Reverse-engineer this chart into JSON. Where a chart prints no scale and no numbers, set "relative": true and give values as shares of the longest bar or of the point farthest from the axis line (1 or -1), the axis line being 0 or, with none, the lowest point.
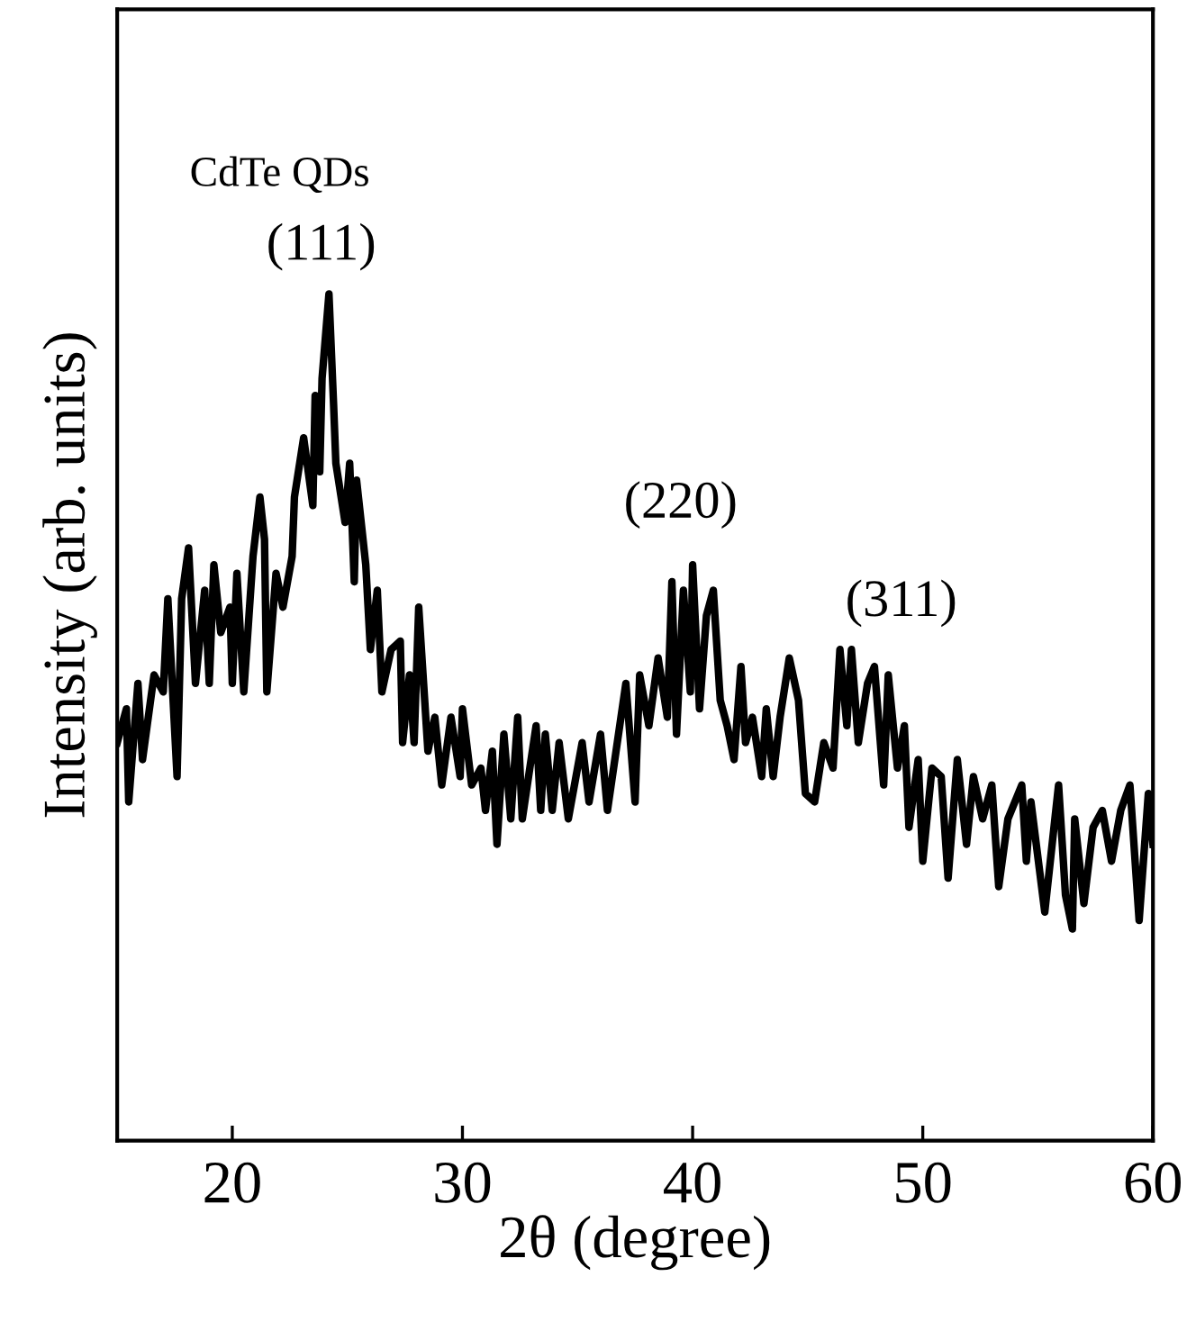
{
  "chart_data": {
    "type": "line",
    "relative": true,
    "xlabel": "2θ (degree)",
    "ylabel": "Intensity (arb. units)",
    "xlim": [
      15,
      60
    ],
    "xticks": [
      20,
      30,
      40,
      50,
      60
    ],
    "annotations": [
      "CdTe QDs",
      "(111)",
      "(220)",
      "(311)"
    ],
    "series": [
      {
        "color": "#000000",
        "x": [
          15.0,
          15.4,
          15.5,
          15.9,
          16.1,
          16.6,
          17.0,
          17.2,
          17.6,
          17.8,
          18.1,
          18.4,
          18.8,
          19.0,
          19.2,
          19.5,
          19.9,
          20.0,
          20.2,
          20.5,
          20.9,
          21.2,
          21.4,
          21.5,
          21.9,
          22.2,
          22.6,
          22.7,
          23.1,
          23.5,
          23.6,
          23.8,
          23.9,
          24.2,
          24.4,
          24.5,
          24.9,
          25.1,
          25.3,
          25.4,
          25.8,
          26.0,
          26.3,
          26.5,
          26.9,
          27.3,
          27.4,
          27.7,
          27.9,
          28.1,
          28.5,
          28.8,
          29.1,
          29.5,
          29.9,
          30.0,
          30.4,
          30.8,
          31.0,
          31.3,
          31.5,
          31.8,
          32.1,
          32.4,
          32.6,
          33.2,
          33.4,
          33.6,
          33.9,
          34.2,
          34.6,
          35.2,
          35.5,
          36.0,
          36.3,
          37.1,
          37.5,
          37.7,
          38.1,
          38.5,
          38.9,
          39.1,
          39.3,
          39.6,
          39.9,
          40.0,
          40.3,
          40.6,
          40.9,
          41.2,
          41.5,
          41.8,
          42.1,
          42.3,
          42.6,
          43.0,
          43.2,
          43.5,
          43.8,
          44.2,
          44.6,
          44.9,
          45.3,
          45.7,
          46.1,
          46.4,
          46.7,
          46.9,
          47.2,
          47.6,
          47.9,
          48.3,
          48.5,
          48.9,
          49.2,
          49.4,
          49.8,
          50.0,
          50.4,
          50.8,
          51.1,
          51.5,
          51.9,
          52.2,
          52.6,
          53.0,
          53.3,
          53.7,
          54.3,
          54.5,
          54.7,
          55.3,
          55.7,
          55.9,
          56.2,
          56.5,
          56.6,
          57.0,
          57.4,
          57.8,
          58.2,
          58.6,
          59.0,
          59.4,
          59.8,
          60.0
        ],
        "values": [
          0.47,
          0.51,
          0.4,
          0.54,
          0.45,
          0.55,
          0.53,
          0.64,
          0.43,
          0.64,
          0.7,
          0.54,
          0.65,
          0.54,
          0.68,
          0.6,
          0.63,
          0.54,
          0.67,
          0.53,
          0.69,
          0.76,
          0.71,
          0.53,
          0.67,
          0.63,
          0.69,
          0.76,
          0.83,
          0.75,
          0.88,
          0.79,
          0.9,
          1.0,
          0.87,
          0.8,
          0.73,
          0.8,
          0.66,
          0.78,
          0.68,
          0.58,
          0.65,
          0.53,
          0.58,
          0.59,
          0.47,
          0.55,
          0.47,
          0.63,
          0.46,
          0.5,
          0.42,
          0.5,
          0.43,
          0.51,
          0.42,
          0.44,
          0.39,
          0.46,
          0.35,
          0.48,
          0.38,
          0.5,
          0.38,
          0.49,
          0.39,
          0.48,
          0.39,
          0.47,
          0.38,
          0.47,
          0.4,
          0.48,
          0.39,
          0.54,
          0.4,
          0.55,
          0.49,
          0.57,
          0.5,
          0.66,
          0.48,
          0.65,
          0.53,
          0.68,
          0.51,
          0.62,
          0.65,
          0.52,
          0.49,
          0.45,
          0.56,
          0.47,
          0.5,
          0.43,
          0.51,
          0.43,
          0.5,
          0.57,
          0.52,
          0.41,
          0.4,
          0.47,
          0.44,
          0.58,
          0.49,
          0.58,
          0.47,
          0.54,
          0.56,
          0.42,
          0.55,
          0.44,
          0.49,
          0.37,
          0.45,
          0.33,
          0.44,
          0.43,
          0.31,
          0.45,
          0.35,
          0.43,
          0.38,
          0.42,
          0.3,
          0.38,
          0.42,
          0.33,
          0.4,
          0.27,
          0.37,
          0.42,
          0.29,
          0.25,
          0.38,
          0.28,
          0.37,
          0.39,
          0.33,
          0.39,
          0.42,
          0.26,
          0.41,
          0.35
        ]
      }
    ]
  }
}
